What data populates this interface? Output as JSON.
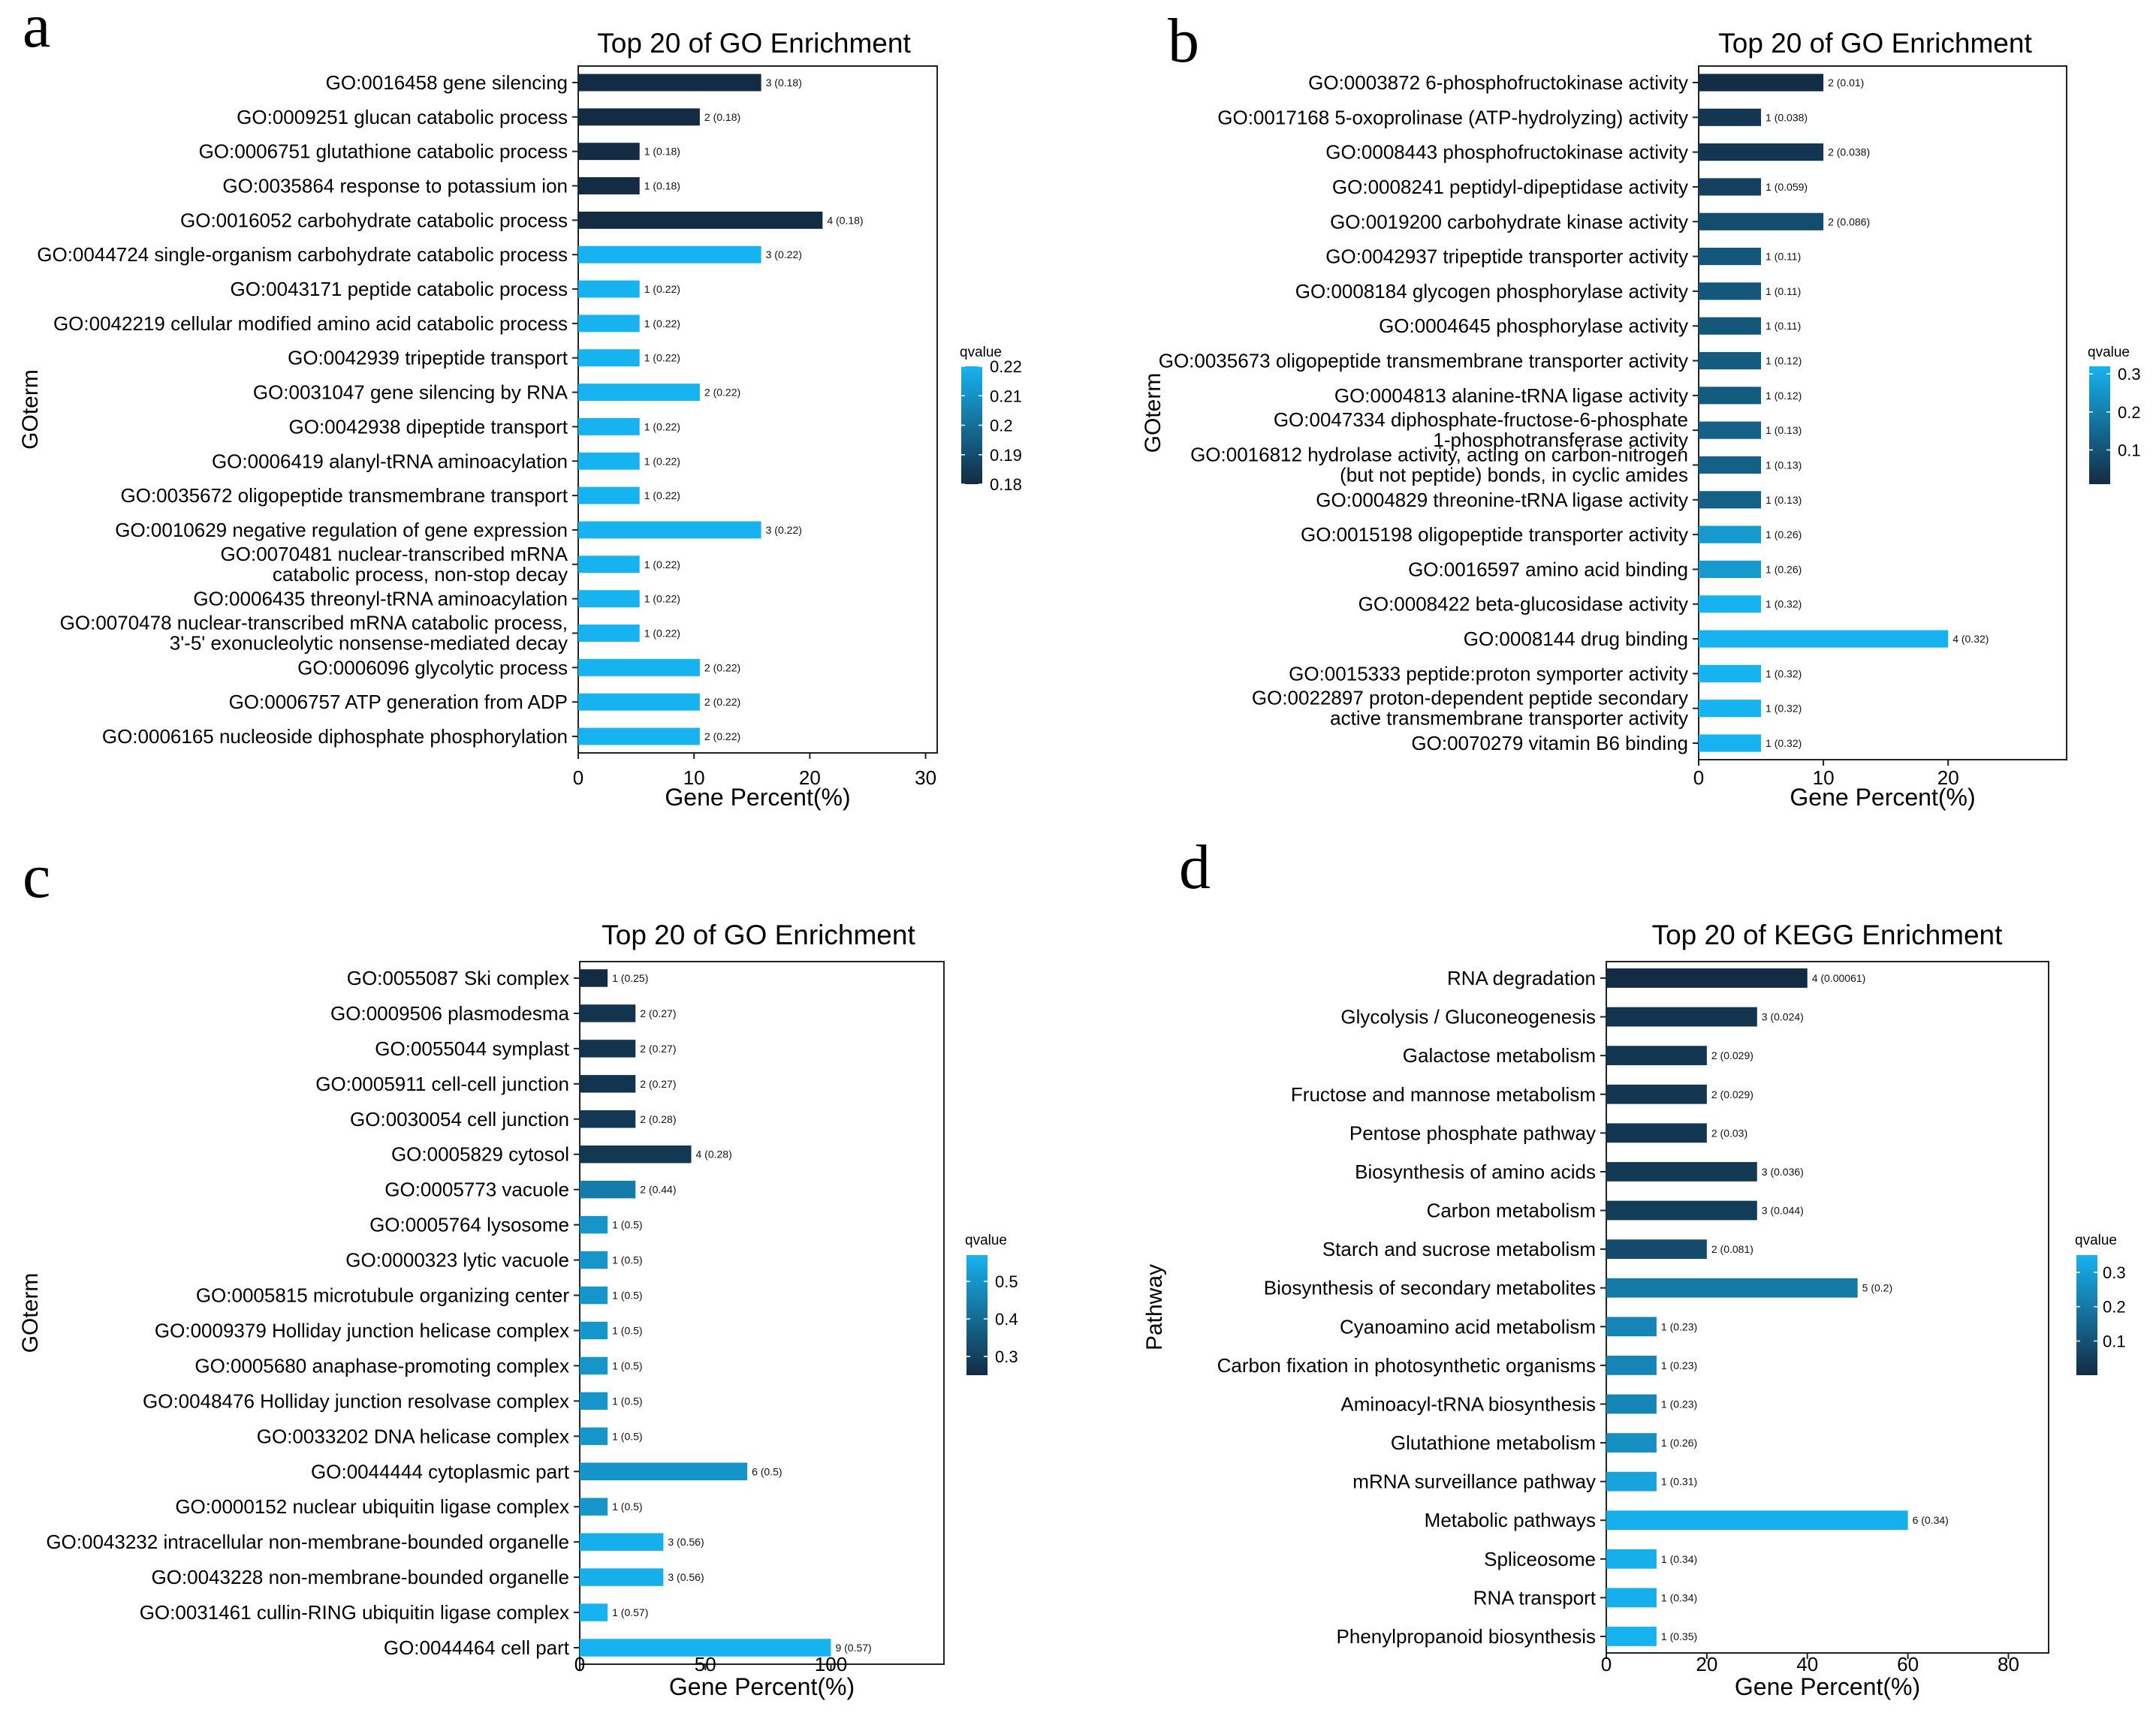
{
  "figure_letters": [
    "a",
    "b",
    "c",
    "d"
  ],
  "colors": {
    "low_q": "#132b43",
    "high_q": "#17b3f0"
  },
  "chart_data": [
    {
      "panel": "a",
      "type": "bar",
      "orientation": "horizontal",
      "title": "Top 20 of GO Enrichment",
      "xlabel": "Gene Percent(%)",
      "ylabel": "GOterm",
      "xlim": [
        0,
        31
      ],
      "xticks": [
        0,
        10,
        20,
        30
      ],
      "legend": {
        "title": "qvalue",
        "position": "right",
        "range": [
          0.18,
          0.22
        ],
        "ticks": [
          0.22,
          0.21,
          0.2,
          0.19,
          0.18
        ]
      },
      "categories": [
        [
          "GO:0016458 gene silencing"
        ],
        [
          "GO:0009251 glucan catabolic process"
        ],
        [
          "GO:0006751 glutathione catabolic process"
        ],
        [
          "GO:0035864 response to potassium ion"
        ],
        [
          "GO:0016052 carbohydrate catabolic process"
        ],
        [
          "GO:0044724 single-organism carbohydrate catabolic process"
        ],
        [
          "GO:0043171 peptide catabolic process"
        ],
        [
          "GO:0042219 cellular modified amino acid catabolic process"
        ],
        [
          "GO:0042939 tripeptide transport"
        ],
        [
          "GO:0031047 gene silencing by RNA"
        ],
        [
          "GO:0042938 dipeptide transport"
        ],
        [
          "GO:0006419 alanyl-tRNA aminoacylation"
        ],
        [
          "GO:0035672 oligopeptide transmembrane transport"
        ],
        [
          "GO:0010629 negative regulation of gene expression"
        ],
        [
          "GO:0070481 nuclear-transcribed mRNA",
          "catabolic process, non-stop decay"
        ],
        [
          "GO:0006435 threonyl-tRNA aminoacylation"
        ],
        [
          "GO:0070478 nuclear-transcribed mRNA catabolic process,",
          "3'-5' exonucleolytic nonsense-mediated decay"
        ],
        [
          "GO:0006096 glycolytic process"
        ],
        [
          "GO:0006757 ATP generation from ADP"
        ],
        [
          "GO:0006165 nucleoside diphosphate phosphorylation"
        ]
      ],
      "values": [
        15.8,
        10.5,
        5.3,
        5.3,
        21.1,
        15.8,
        5.3,
        5.3,
        5.3,
        10.5,
        5.3,
        5.3,
        5.3,
        15.8,
        5.3,
        5.3,
        5.3,
        10.5,
        10.5,
        10.5
      ],
      "qvalues": [
        0.18,
        0.18,
        0.18,
        0.18,
        0.18,
        0.22,
        0.22,
        0.22,
        0.22,
        0.22,
        0.22,
        0.22,
        0.22,
        0.22,
        0.22,
        0.22,
        0.22,
        0.22,
        0.22,
        0.22
      ],
      "bar_labels": [
        "3 (0.18)",
        "2 (0.18)",
        "1 (0.18)",
        "1 (0.18)",
        "4 (0.18)",
        "3 (0.22)",
        "1 (0.22)",
        "1 (0.22)",
        "1 (0.22)",
        "2 (0.22)",
        "1 (0.22)",
        "1 (0.22)",
        "1 (0.22)",
        "3 (0.22)",
        "1 (0.22)",
        "1 (0.22)",
        "1 (0.22)",
        "2 (0.22)",
        "2 (0.22)",
        "2 (0.22)"
      ]
    },
    {
      "panel": "b",
      "type": "bar",
      "orientation": "horizontal",
      "title": "Top 20 of GO Enrichment",
      "xlabel": "Gene Percent(%)",
      "ylabel": "GOterm",
      "xlim": [
        0,
        29.5
      ],
      "xticks": [
        0,
        10,
        20
      ],
      "legend": {
        "title": "qvalue",
        "position": "right",
        "range": [
          0.01,
          0.32
        ],
        "ticks": [
          0.3,
          0.2,
          0.1
        ]
      },
      "categories": [
        [
          "GO:0003872 6-phosphofructokinase activity"
        ],
        [
          "GO:0017168 5-oxoprolinase (ATP-hydrolyzing) activity"
        ],
        [
          "GO:0008443 phosphofructokinase activity"
        ],
        [
          "GO:0008241 peptidyl-dipeptidase activity"
        ],
        [
          "GO:0019200 carbohydrate kinase activity"
        ],
        [
          "GO:0042937 tripeptide transporter activity"
        ],
        [
          "GO:0008184 glycogen phosphorylase activity"
        ],
        [
          "GO:0004645 phosphorylase activity"
        ],
        [
          "GO:0035673 oligopeptide transmembrane transporter activity"
        ],
        [
          "GO:0004813 alanine-tRNA ligase activity"
        ],
        [
          "GO:0047334 diphosphate-fructose-6-phosphate",
          "1-phosphotransferase activity"
        ],
        [
          "GO:0016812 hydrolase activity, acting on carbon-nitrogen",
          "(but not peptide) bonds, in cyclic amides"
        ],
        [
          "GO:0004829 threonine-tRNA ligase activity"
        ],
        [
          "GO:0015198 oligopeptide transporter activity"
        ],
        [
          "GO:0016597 amino acid binding"
        ],
        [
          "GO:0008422 beta-glucosidase activity"
        ],
        [
          "GO:0008144 drug binding"
        ],
        [
          "GO:0015333 peptide:proton symporter activity"
        ],
        [
          "GO:0022897 proton-dependent peptide secondary",
          "active transmembrane transporter activity"
        ],
        [
          "GO:0070279 vitamin B6 binding"
        ]
      ],
      "values": [
        10,
        5,
        10,
        5,
        10,
        5,
        5,
        5,
        5,
        5,
        5,
        5,
        5,
        5,
        5,
        5,
        20,
        5,
        5,
        5
      ],
      "qvalues": [
        0.01,
        0.038,
        0.038,
        0.059,
        0.086,
        0.11,
        0.11,
        0.11,
        0.12,
        0.12,
        0.13,
        0.13,
        0.13,
        0.26,
        0.26,
        0.32,
        0.32,
        0.32,
        0.32,
        0.32
      ],
      "bar_labels": [
        "2 (0.01)",
        "1 (0.038)",
        "2 (0.038)",
        "1 (0.059)",
        "2 (0.086)",
        "1 (0.11)",
        "1 (0.11)",
        "1 (0.11)",
        "1 (0.12)",
        "1 (0.12)",
        "1 (0.13)",
        "1 (0.13)",
        "1 (0.13)",
        "1 (0.26)",
        "1 (0.26)",
        "1 (0.32)",
        "4 (0.32)",
        "1 (0.32)",
        "1 (0.32)",
        "1 (0.32)"
      ]
    },
    {
      "panel": "c",
      "type": "bar",
      "orientation": "horizontal",
      "title": "Top 20 of GO Enrichment",
      "xlabel": "Gene Percent(%)",
      "ylabel": "GOterm",
      "xlim": [
        0,
        145
      ],
      "xticks": [
        0,
        50,
        100
      ],
      "legend": {
        "title": "qvalue",
        "position": "right",
        "range": [
          0.25,
          0.57
        ],
        "ticks": [
          0.5,
          0.4,
          0.3
        ]
      },
      "categories": [
        [
          "GO:0055087 Ski complex"
        ],
        [
          "GO:0009506 plasmodesma"
        ],
        [
          "GO:0055044 symplast"
        ],
        [
          "GO:0005911 cell-cell junction"
        ],
        [
          "GO:0030054 cell junction"
        ],
        [
          "GO:0005829 cytosol"
        ],
        [
          "GO:0005773 vacuole"
        ],
        [
          "GO:0005764 lysosome"
        ],
        [
          "GO:0000323 lytic vacuole"
        ],
        [
          "GO:0005815 microtubule organizing center"
        ],
        [
          "GO:0009379 Holliday junction helicase complex"
        ],
        [
          "GO:0005680 anaphase-promoting complex"
        ],
        [
          "GO:0048476 Holliday junction resolvase complex"
        ],
        [
          "GO:0033202 DNA helicase complex"
        ],
        [
          "GO:0044444 cytoplasmic part"
        ],
        [
          "GO:0000152 nuclear ubiquitin ligase complex"
        ],
        [
          "GO:0043232 intracellular non-membrane-bounded organelle"
        ],
        [
          "GO:0043228 non-membrane-bounded organelle"
        ],
        [
          "GO:0031461 cullin-RING ubiquitin ligase complex"
        ],
        [
          "GO:0044464 cell part"
        ]
      ],
      "values": [
        11.1,
        22.2,
        22.2,
        22.2,
        22.2,
        44.4,
        22.2,
        11.1,
        11.1,
        11.1,
        11.1,
        11.1,
        11.1,
        11.1,
        66.7,
        11.1,
        33.3,
        33.3,
        11.1,
        100
      ],
      "qvalues": [
        0.25,
        0.27,
        0.27,
        0.27,
        0.28,
        0.28,
        0.44,
        0.5,
        0.5,
        0.5,
        0.5,
        0.5,
        0.5,
        0.5,
        0.5,
        0.5,
        0.56,
        0.56,
        0.57,
        0.57
      ],
      "bar_labels": [
        "1 (0.25)",
        "2 (0.27)",
        "2 (0.27)",
        "2 (0.27)",
        "2 (0.28)",
        "4 (0.28)",
        "2 (0.44)",
        "1 (0.5)",
        "1 (0.5)",
        "1 (0.5)",
        "1 (0.5)",
        "1 (0.5)",
        "1 (0.5)",
        "1 (0.5)",
        "6 (0.5)",
        "1 (0.5)",
        "3 (0.56)",
        "3 (0.56)",
        "1 (0.57)",
        "9 (0.57)"
      ]
    },
    {
      "panel": "d",
      "type": "bar",
      "orientation": "horizontal",
      "title": "Top 20 of KEGG Enrichment",
      "xlabel": "Gene Percent(%)",
      "ylabel": "Pathway",
      "xlim": [
        0,
        88
      ],
      "xticks": [
        0,
        20,
        40,
        60,
        80
      ],
      "legend": {
        "title": "qvalue",
        "position": "right",
        "range": [
          0.00061,
          0.35
        ],
        "ticks": [
          0.3,
          0.2,
          0.1
        ]
      },
      "categories": [
        [
          "RNA degradation"
        ],
        [
          "Glycolysis / Gluconeogenesis"
        ],
        [
          "Galactose metabolism"
        ],
        [
          "Fructose and mannose metabolism"
        ],
        [
          "Pentose phosphate pathway"
        ],
        [
          "Biosynthesis of amino acids"
        ],
        [
          "Carbon metabolism"
        ],
        [
          "Starch and sucrose metabolism"
        ],
        [
          "Biosynthesis of secondary metabolites"
        ],
        [
          "Cyanoamino acid metabolism"
        ],
        [
          "Carbon fixation in photosynthetic organisms"
        ],
        [
          "Aminoacyl-tRNA biosynthesis"
        ],
        [
          "Glutathione metabolism"
        ],
        [
          "mRNA surveillance pathway"
        ],
        [
          "Metabolic pathways"
        ],
        [
          "Spliceosome"
        ],
        [
          "RNA transport"
        ],
        [
          "Phenylpropanoid biosynthesis"
        ]
      ],
      "values": [
        40,
        30,
        20,
        20,
        20,
        30,
        30,
        20,
        50,
        10,
        10,
        10,
        10,
        10,
        60,
        10,
        10,
        10
      ],
      "qvalues": [
        0.00061,
        0.024,
        0.029,
        0.029,
        0.03,
        0.036,
        0.044,
        0.081,
        0.2,
        0.23,
        0.23,
        0.23,
        0.26,
        0.31,
        0.34,
        0.34,
        0.34,
        0.35
      ],
      "bar_labels": [
        "4 (0.00061)",
        "3 (0.024)",
        "2 (0.029)",
        "2 (0.029)",
        "2 (0.03)",
        "3 (0.036)",
        "3 (0.044)",
        "2 (0.081)",
        "5 (0.2)",
        "1 (0.23)",
        "1 (0.23)",
        "1 (0.23)",
        "1 (0.26)",
        "1 (0.31)",
        "6 (0.34)",
        "1 (0.34)",
        "1 (0.34)",
        "1 (0.35)"
      ]
    }
  ]
}
